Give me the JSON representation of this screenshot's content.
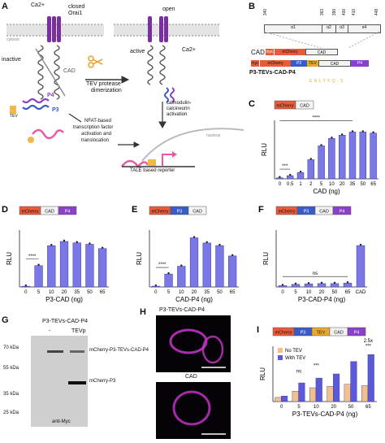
{
  "panels": {
    "A": {
      "label": "A",
      "ca_top": "Ca2+",
      "closed": "closed",
      "orai1": "Orai1",
      "cytosol": "cytosol",
      "open": "open",
      "inactive": "inactive",
      "cad": "CAD",
      "active": "active",
      "ca_right": "Ca2+",
      "tev_protease": "TEV protease",
      "dimerization": "dimerization",
      "p4": "P4",
      "p3": "P3",
      "tev": "TEV",
      "calmodulin": "calmodulin-",
      "calcineurin": "calcineurin",
      "activation": "activation",
      "nfat1": "NFAT-based",
      "nfat2": "transcription factor",
      "nfat3": "activation and",
      "nfat4": "translocation",
      "nucleus": "nucleus",
      "tale": "TALE based reporter"
    },
    "B": {
      "label": "B",
      "ticks": [
        "340",
        "363",
        "390",
        "400",
        "410",
        "448"
      ],
      "domains": [
        "α1",
        "α2",
        "α3",
        "α4"
      ],
      "cad_label": "CAD",
      "construct1": [
        "myc",
        "mCherry",
        "CAD"
      ],
      "construct2": [
        "myc",
        "mCherry",
        "P3",
        "TEV",
        "CAD",
        "P4"
      ],
      "name": "P3-TEVs-CAD-P4",
      "tev_site": "E N L Y F Q - S"
    },
    "G": {
      "label": "G",
      "title": "P3-TEVs-CAD-P4",
      "lane_minus": "-",
      "lane_tevp": "TEVp",
      "markers": [
        "70 kDa",
        "55 kDa",
        "35 kDa",
        "25 kDa"
      ],
      "band1": "mCherry-P3-TEVs-CAD-P4",
      "band2": "mCherry-P3",
      "antibody": "anti-Myc"
    },
    "H": {
      "label": "H",
      "top": "P3-TEVs-CAD-P4",
      "bottom": "CAD"
    }
  },
  "colors": {
    "bar": "#7a78e6",
    "bar_edge": "#3a37a0",
    "notev": "#f4c08a",
    "withtev": "#5a5ad8",
    "mcherry": "#e85a3a",
    "p3": "#3a5cc8",
    "tev": "#e8a830",
    "p4": "#8a40c8",
    "orai": "#7a2fa0",
    "magenta": "#c836c8"
  },
  "chart_data": [
    {
      "id": "C",
      "type": "bar",
      "label": "C",
      "construct": [
        "mCherry",
        "CAD"
      ],
      "categories": [
        "0",
        "0.5",
        "1",
        "2",
        "5",
        "10",
        "20",
        "35",
        "50",
        "65"
      ],
      "values": [
        0.1,
        0.3,
        0.6,
        1.8,
        3.1,
        3.8,
        4.1,
        4.4,
        4.4,
        4.3
      ],
      "xlabel": "CAD (ng)",
      "ylabel": "RLU",
      "significance": [
        {
          "from": 0,
          "to": 1,
          "text": "***"
        },
        {
          "from": 0,
          "to": 7,
          "text": "****"
        }
      ]
    },
    {
      "id": "D",
      "type": "bar",
      "label": "D",
      "construct": [
        "mCherry",
        "CAD",
        "P4"
      ],
      "categories": [
        "0",
        "5",
        "10",
        "20",
        "35",
        "50",
        "65"
      ],
      "values": [
        0.5,
        15,
        29,
        32,
        31,
        30,
        27
      ],
      "xlabel": "P3-CAD (ng)",
      "ylabel": "RLU",
      "significance": [
        {
          "from": 0,
          "to": 1,
          "text": "****"
        }
      ]
    },
    {
      "id": "E",
      "type": "bar",
      "label": "E",
      "construct": [
        "mCherry",
        "P3",
        "CAD"
      ],
      "categories": [
        "0",
        "5",
        "10",
        "20",
        "35",
        "50",
        "65"
      ],
      "values": [
        0.3,
        5,
        8,
        19,
        17,
        16,
        12
      ],
      "xlabel": "CAD-P4 (ng)",
      "ylabel": "RLU",
      "significance": [
        {
          "from": 0,
          "to": 1,
          "text": "****"
        }
      ]
    },
    {
      "id": "F",
      "type": "bar",
      "label": "F",
      "construct": [
        "mCherry",
        "P3",
        "CAD",
        "P4"
      ],
      "categories": [
        "0",
        "5",
        "10",
        "20",
        "50",
        "65",
        "CAD"
      ],
      "values": [
        0.5,
        1,
        1.2,
        1.3,
        1.3,
        1.5,
        16
      ],
      "xlabel": "P3-CAD-P4 (ng)",
      "ylabel": "RLU",
      "significance": [
        {
          "from": 0,
          "to": 5,
          "text": "ns"
        }
      ]
    },
    {
      "id": "I",
      "type": "bar",
      "label": "I",
      "construct": [
        "mCherry",
        "P3",
        "TEV",
        "CAD",
        "P4"
      ],
      "categories": [
        "0",
        "5",
        "10",
        "20",
        "50",
        "65"
      ],
      "series": [
        {
          "name": "No TEV",
          "values": [
            0.6,
            1.5,
            2.0,
            2.2,
            2.5,
            2.3
          ]
        },
        {
          "name": "With TEV",
          "values": [
            0.8,
            2.7,
            3.4,
            4.0,
            5.8,
            6.8
          ]
        }
      ],
      "xlabel": "P3-TEVs-CAD-P4 (ng)",
      "ylabel": "RLU",
      "annotations": [
        "ns",
        "***",
        "2.5x",
        "***"
      ]
    }
  ]
}
